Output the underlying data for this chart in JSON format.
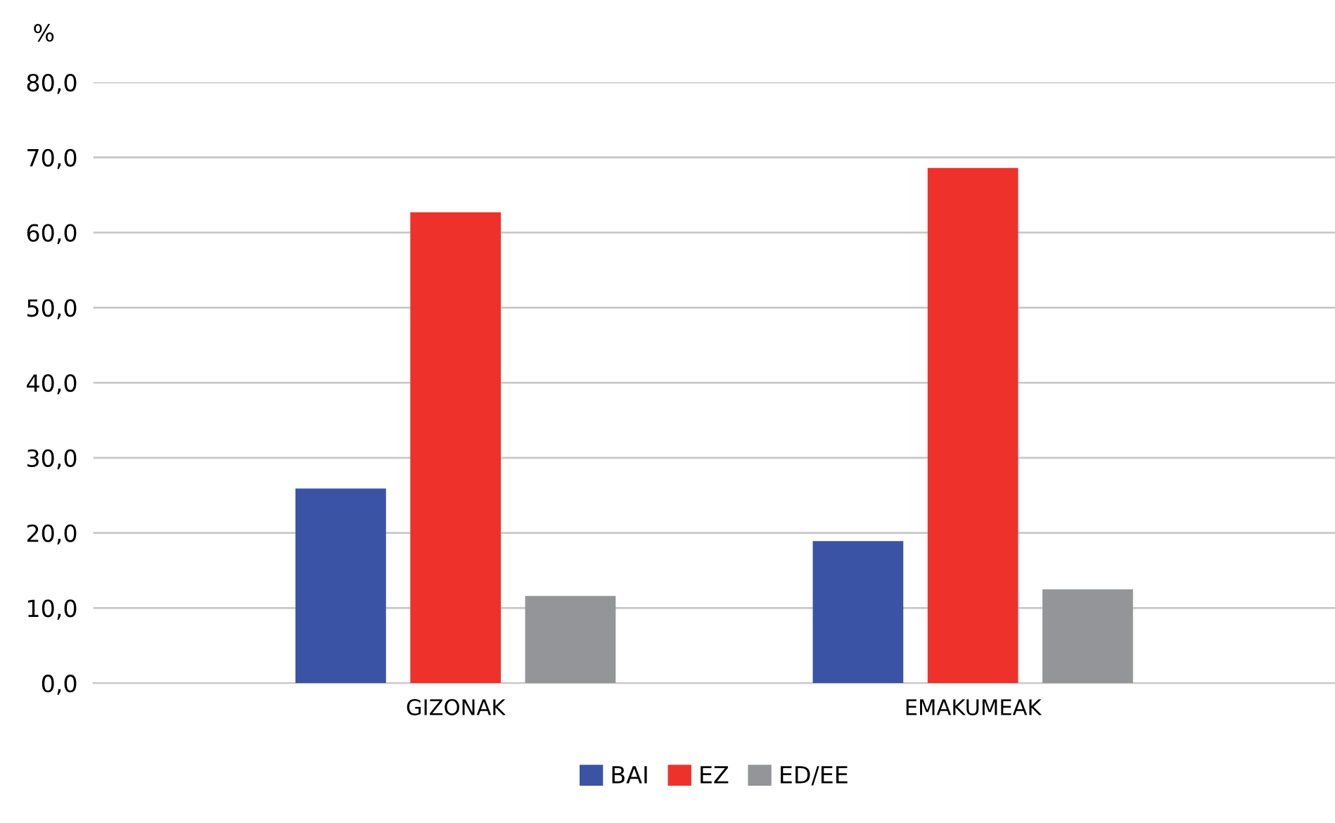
{
  "chart_data": {
    "type": "bar",
    "ylabel": "%",
    "categories": [
      "GIZONAK",
      "EMAKUMEAK"
    ],
    "series": [
      {
        "name": "BAI",
        "color": "#3a53a4",
        "values": [
          25.9,
          18.9
        ]
      },
      {
        "name": "EZ",
        "color": "#ee312b",
        "values": [
          62.7,
          68.6
        ]
      },
      {
        "name": "ED/EE",
        "color": "#939598",
        "values": [
          11.6,
          12.5
        ]
      }
    ],
    "ylim": [
      0,
      80
    ],
    "yticks": [
      {
        "value": 0,
        "label": "0,0"
      },
      {
        "value": 10,
        "label": "10,0"
      },
      {
        "value": 20,
        "label": "20,0"
      },
      {
        "value": 30,
        "label": "30,0"
      },
      {
        "value": 40,
        "label": "40,0"
      },
      {
        "value": 50,
        "label": "50,0"
      },
      {
        "value": 60,
        "label": "60,0"
      },
      {
        "value": 70,
        "label": "70,0"
      },
      {
        "value": 80,
        "label": "80,0"
      }
    ],
    "grid": "y",
    "legend": "bottom"
  }
}
